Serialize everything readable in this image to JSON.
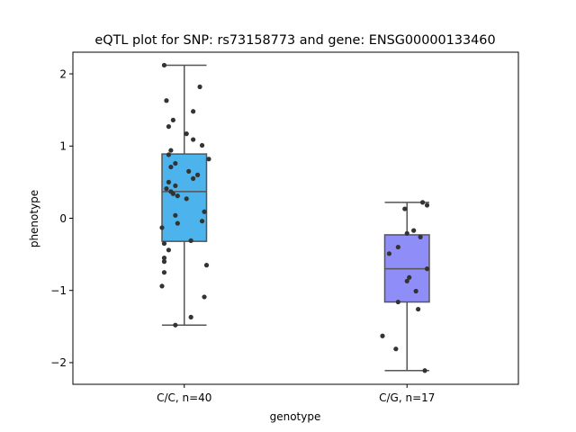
{
  "chart_data": {
    "type": "box",
    "title": "eQTL plot for SNP: rs73158773 and gene: ENSG00000133460",
    "xlabel": "genotype",
    "ylabel": "phenotype",
    "ylim": [
      -2.3,
      2.3
    ],
    "yticks": [
      2,
      1,
      0,
      -1,
      -2
    ],
    "ytick_labels": [
      "2",
      "1",
      "0",
      "−1",
      "−2"
    ],
    "grid": false,
    "legend": "none",
    "categories": [
      "C/C, n=40",
      "C/G, n=17"
    ],
    "colors": [
      "#4db3ec",
      "#8f8ef8"
    ],
    "line_color": "#555555",
    "point_color": "#333333",
    "boxes": [
      {
        "category": "C/C, n=40",
        "whislo": -1.48,
        "q1": -0.32,
        "median": 0.37,
        "q3": 0.89,
        "whishi": 2.12,
        "points": [
          {
            "x": -0.09,
            "y": 2.12
          },
          {
            "x": 0.07,
            "y": 1.82
          },
          {
            "x": -0.08,
            "y": 1.63
          },
          {
            "x": 0.04,
            "y": 1.48
          },
          {
            "x": -0.05,
            "y": 1.36
          },
          {
            "x": -0.07,
            "y": 1.27
          },
          {
            "x": 0.01,
            "y": 1.17
          },
          {
            "x": 0.04,
            "y": 1.09
          },
          {
            "x": 0.08,
            "y": 1.01
          },
          {
            "x": -0.06,
            "y": 0.94
          },
          {
            "x": -0.07,
            "y": 0.88
          },
          {
            "x": 0.11,
            "y": 0.82
          },
          {
            "x": -0.04,
            "y": 0.76
          },
          {
            "x": -0.06,
            "y": 0.71
          },
          {
            "x": 0.02,
            "y": 0.65
          },
          {
            "x": 0.06,
            "y": 0.6
          },
          {
            "x": 0.04,
            "y": 0.55
          },
          {
            "x": -0.07,
            "y": 0.5
          },
          {
            "x": -0.04,
            "y": 0.45
          },
          {
            "x": -0.08,
            "y": 0.41
          },
          {
            "x": -0.06,
            "y": 0.37
          },
          {
            "x": -0.05,
            "y": 0.34
          },
          {
            "x": -0.03,
            "y": 0.31
          },
          {
            "x": 0.01,
            "y": 0.27
          },
          {
            "x": 0.09,
            "y": 0.09
          },
          {
            "x": -0.04,
            "y": 0.04
          },
          {
            "x": -0.03,
            "y": -0.07
          },
          {
            "x": 0.08,
            "y": -0.04
          },
          {
            "x": -0.1,
            "y": -0.13
          },
          {
            "x": 0.03,
            "y": -0.31
          },
          {
            "x": -0.09,
            "y": -0.35
          },
          {
            "x": -0.07,
            "y": -0.44
          },
          {
            "x": -0.09,
            "y": -0.55
          },
          {
            "x": -0.09,
            "y": -0.6
          },
          {
            "x": 0.1,
            "y": -0.65
          },
          {
            "x": -0.09,
            "y": -0.75
          },
          {
            "x": -0.1,
            "y": -0.94
          },
          {
            "x": 0.09,
            "y": -1.09
          },
          {
            "x": 0.03,
            "y": -1.37
          },
          {
            "x": -0.04,
            "y": -1.48
          }
        ]
      },
      {
        "category": "C/G, n=17",
        "whislo": -2.11,
        "q1": -1.16,
        "median": -0.7,
        "q3": -0.23,
        "whishi": 0.22,
        "points": [
          {
            "x": 0.07,
            "y": 0.22
          },
          {
            "x": 0.09,
            "y": 0.18
          },
          {
            "x": -0.01,
            "y": 0.13
          },
          {
            "x": 0.03,
            "y": -0.17
          },
          {
            "x": 0.0,
            "y": -0.21
          },
          {
            "x": 0.06,
            "y": -0.26
          },
          {
            "x": -0.04,
            "y": -0.4
          },
          {
            "x": -0.08,
            "y": -0.49
          },
          {
            "x": 0.09,
            "y": -0.7
          },
          {
            "x": 0.01,
            "y": -0.82
          },
          {
            "x": 0.0,
            "y": -0.87
          },
          {
            "x": 0.04,
            "y": -1.01
          },
          {
            "x": -0.04,
            "y": -1.16
          },
          {
            "x": 0.05,
            "y": -1.26
          },
          {
            "x": -0.11,
            "y": -1.63
          },
          {
            "x": -0.05,
            "y": -1.81
          },
          {
            "x": 0.08,
            "y": -2.11
          }
        ]
      }
    ]
  }
}
